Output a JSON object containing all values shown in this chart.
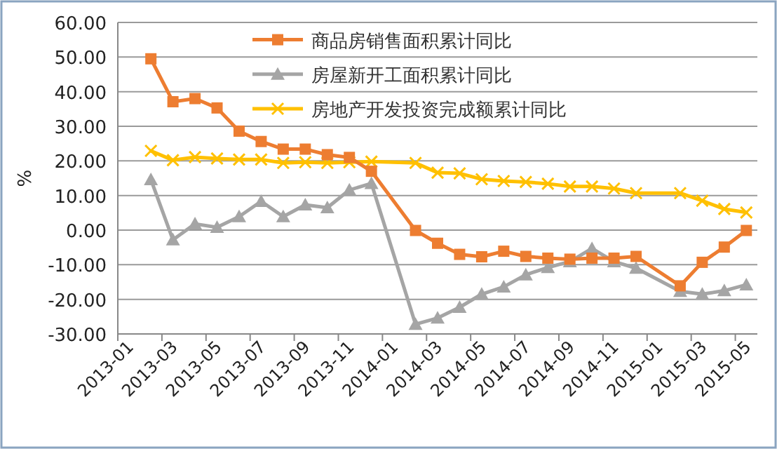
{
  "chart_data": {
    "type": "line",
    "ylabel": "%",
    "categories": [
      "2013-01",
      null,
      "2013-03",
      null,
      "2013-05",
      null,
      "2013-07",
      null,
      "2013-09",
      null,
      "2013-11",
      null,
      "2014-01",
      null,
      "2014-03",
      null,
      "2014-05",
      null,
      "2014-07",
      null,
      "2014-09",
      null,
      "2014-11",
      null,
      "2015-01",
      null,
      "2015-03",
      null,
      "2015-05"
    ],
    "series": [
      {
        "name": "商品房销售面积累计同比",
        "color": "#ed7d31",
        "marker": "square",
        "values": [
          null,
          49.5,
          37.1,
          38.0,
          35.3,
          28.6,
          25.6,
          23.4,
          23.4,
          21.8,
          21.0,
          17.0,
          null,
          -0.1,
          -3.8,
          -7.0,
          -7.7,
          -6.1,
          -7.6,
          -8.1,
          -8.4,
          -8.1,
          -8.1,
          -7.6,
          null,
          -16.1,
          -9.3,
          -4.9,
          -0.1
        ]
      },
      {
        "name": "房屋新开工面积累计同比",
        "color": "#a5a5a5",
        "marker": "triangle",
        "values": [
          null,
          14.6,
          -2.8,
          1.8,
          0.8,
          3.9,
          8.3,
          3.9,
          7.3,
          6.5,
          11.6,
          13.5,
          null,
          -27.2,
          -25.4,
          -22.3,
          -18.5,
          -16.4,
          -12.9,
          -10.8,
          -9.1,
          -5.3,
          -9.1,
          -11.0,
          null,
          -17.7,
          -18.5,
          -17.5,
          -15.8
        ]
      },
      {
        "name": "房地产开发投资完成额累计同比",
        "color": "#ffc000",
        "marker": "cross",
        "values": [
          null,
          22.9,
          20.2,
          21.1,
          20.7,
          20.4,
          20.4,
          19.4,
          19.6,
          19.4,
          19.6,
          19.8,
          null,
          19.4,
          16.6,
          16.4,
          14.7,
          14.2,
          13.9,
          13.4,
          12.6,
          12.6,
          12.0,
          10.7,
          null,
          10.7,
          8.5,
          6.1,
          5.1
        ]
      }
    ],
    "ylim": [
      -30,
      60
    ],
    "yticks": [
      {
        "value": -30,
        "label": "-30.00"
      },
      {
        "value": -20,
        "label": "-20.00"
      },
      {
        "value": -10,
        "label": "-10.00"
      },
      {
        "value": 0,
        "label": "0.00"
      },
      {
        "value": 10,
        "label": "10.00"
      },
      {
        "value": 20,
        "label": "20.00"
      },
      {
        "value": 30,
        "label": "30.00"
      },
      {
        "value": 40,
        "label": "40.00"
      },
      {
        "value": 50,
        "label": "50.00"
      },
      {
        "value": 60,
        "label": "60.00"
      }
    ],
    "grid": "y",
    "legend": "top right",
    "line_style": "solid"
  }
}
